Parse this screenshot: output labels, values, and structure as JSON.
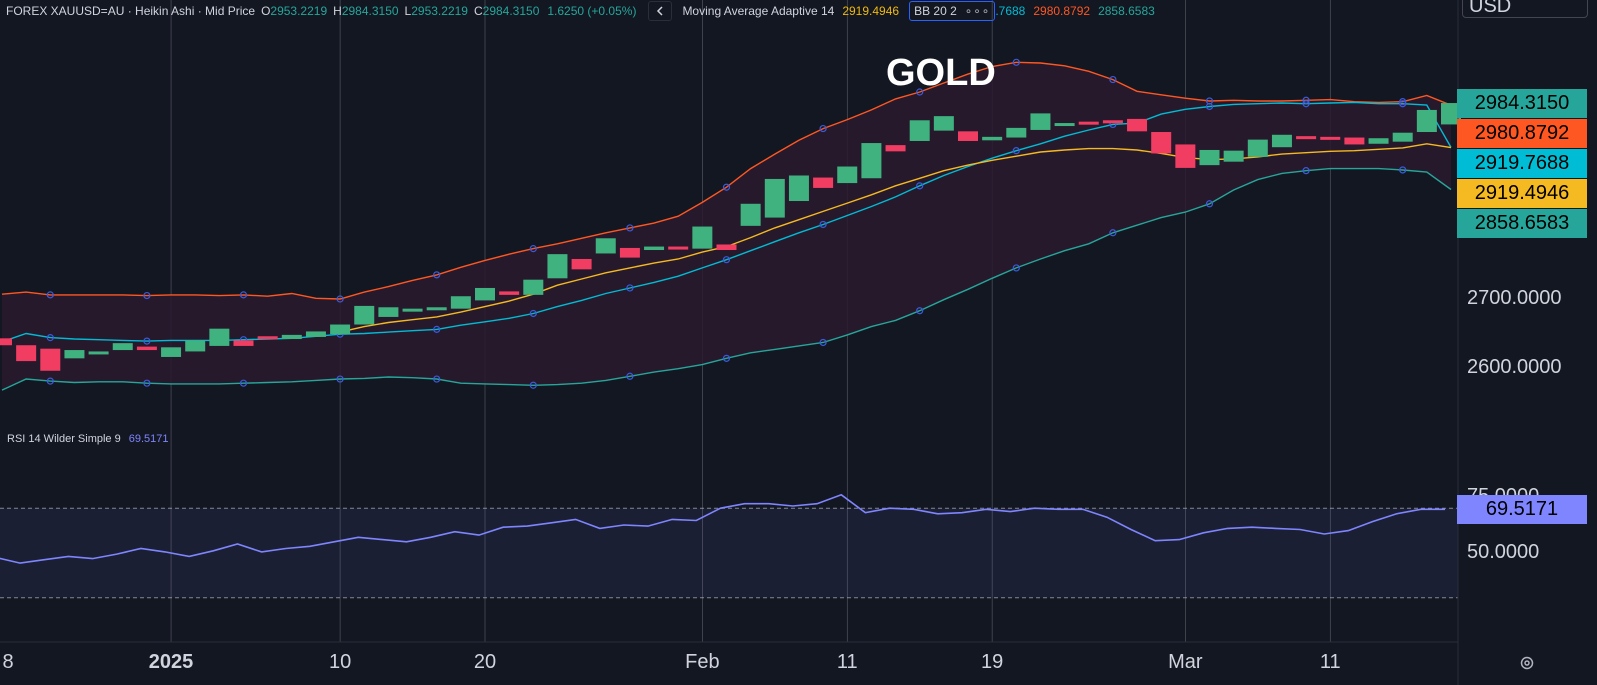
{
  "header": {
    "symbol": "FOREX XAUUSD=AU · Heikin Ashi · Mid Price",
    "o_key": "O",
    "o_val": "2953.2219",
    "h_key": "H",
    "h_val": "2984.3150",
    "l_key": "L",
    "l_val": "2953.2219",
    "c_key": "C",
    "c_val": "2984.3150",
    "change": "1.6250 (+0.05%)",
    "collapse_icon": "chevron-left-icon",
    "ma_label": "Moving Average Adaptive 14",
    "ma_value": "2919.4946",
    "bb_label": "BB 20 2",
    "bb_more": "∘∘∘",
    "bb_mid": ".7688",
    "bb_upper": "2980.8792",
    "bb_lower": "2858.6583"
  },
  "currency": "USD",
  "chart_title": "GOLD",
  "rsi_header": {
    "label": "RSI 14 Wilder Simple 9",
    "value": "69.5171"
  },
  "price_axis": [
    {
      "label": "2700.0000",
      "value": 2700
    },
    {
      "label": "2600.0000",
      "value": 2600
    }
  ],
  "rsi_axis": [
    {
      "label": "75.0000",
      "value": 75
    },
    {
      "label": "50.0000",
      "value": 50
    }
  ],
  "price_tags": [
    {
      "label": "2984.3150",
      "value": 2984.315,
      "color": "#26a69a"
    },
    {
      "label": "2980.8792",
      "value": 2980.8792,
      "color": "#ff5722"
    },
    {
      "label": "2919.7688",
      "value": 2919.7688,
      "color": "#00bcd4"
    },
    {
      "label": "2919.4946",
      "value": 2919.4946,
      "color": "#f5b921"
    },
    {
      "label": "2858.6583",
      "value": 2858.6583,
      "color": "#26a69a"
    }
  ],
  "rsi_tag": {
    "label": "69.5171",
    "value": 69.5171,
    "color": "#7e85ff"
  },
  "x_axis": [
    {
      "label": "8",
      "bar": 0,
      "bold": false
    },
    {
      "label": "2025",
      "bar": 7,
      "bold": true
    },
    {
      "label": "10",
      "bar": 14,
      "bold": false
    },
    {
      "label": "20",
      "bar": 20,
      "bold": false
    },
    {
      "label": "Feb",
      "bar": 29,
      "bold": false
    },
    {
      "label": "11",
      "bar": 35,
      "bold": false
    },
    {
      "label": "19",
      "bar": 41,
      "bold": false
    },
    {
      "label": "Mar",
      "bar": 49,
      "bold": false
    },
    {
      "label": "11",
      "bar": 55,
      "bold": false
    }
  ],
  "settings_icon": "settings-icon",
  "colors": {
    "bg": "#131722",
    "up": "#3fb27f",
    "down": "#f23d63",
    "upper": "#ff5722",
    "basis": "#00bcd4",
    "lower": "#26a69a",
    "ma": "#f5b921",
    "rsi": "#7e85ff",
    "band_fill": "#2a1a2e",
    "grid": "#9598a1"
  },
  "chart_data": [
    {
      "type": "candlestick",
      "subtype": "heikin-ashi",
      "title": "GOLD",
      "symbol": "XAUUSD",
      "ylim": [
        2550,
        3040
      ],
      "x_ticks": [
        "8",
        "2025",
        "10",
        "20",
        "Feb",
        "11",
        "19",
        "Mar",
        "11"
      ],
      "candles": [
        [
          2643,
          2633
        ],
        [
          2633,
          2610
        ],
        [
          2628,
          2596
        ],
        [
          2614,
          2626
        ],
        [
          2622,
          2624
        ],
        [
          2626,
          2636
        ],
        [
          2631,
          2626
        ],
        [
          2616,
          2630
        ],
        [
          2624,
          2640
        ],
        [
          2632,
          2657
        ],
        [
          2640,
          2632
        ],
        [
          2646,
          2644
        ],
        [
          2642,
          2648
        ],
        [
          2645,
          2653
        ],
        [
          2649,
          2663
        ],
        [
          2663,
          2690
        ],
        [
          2674,
          2688
        ],
        [
          2684,
          2686
        ],
        [
          2685,
          2688
        ],
        [
          2686,
          2704
        ],
        [
          2698,
          2716
        ],
        [
          2711,
          2706
        ],
        [
          2706,
          2728
        ],
        [
          2730,
          2765
        ],
        [
          2758,
          2743
        ],
        [
          2766,
          2788
        ],
        [
          2774,
          2760
        ],
        [
          2771,
          2776
        ],
        [
          2776,
          2773
        ],
        [
          2773,
          2805
        ],
        [
          2779,
          2771
        ],
        [
          2806,
          2838
        ],
        [
          2818,
          2874
        ],
        [
          2842,
          2879
        ],
        [
          2876,
          2861
        ],
        [
          2868,
          2892
        ],
        [
          2875,
          2926
        ],
        [
          2923,
          2914
        ],
        [
          2929,
          2959
        ],
        [
          2944,
          2965
        ],
        [
          2943,
          2929
        ],
        [
          2930,
          2935
        ],
        [
          2934,
          2948
        ],
        [
          2945,
          2969
        ],
        [
          2951,
          2955
        ],
        [
          2957,
          2955
        ],
        [
          2959,
          2955
        ],
        [
          2961,
          2943
        ],
        [
          2942,
          2911
        ],
        [
          2924,
          2890
        ],
        [
          2894,
          2916
        ],
        [
          2899,
          2915
        ],
        [
          2906,
          2931
        ],
        [
          2920,
          2938
        ],
        [
          2936,
          2934
        ],
        [
          2935,
          2931
        ],
        [
          2934,
          2924
        ],
        [
          2925,
          2933
        ],
        [
          2928,
          2941
        ],
        [
          2942,
          2974
        ],
        [
          2953,
          2984
        ]
      ],
      "series": [
        {
          "name": "BB 20 2 upper",
          "values": [
            2707,
            2710,
            2706,
            2706,
            2706,
            2706,
            2705,
            2706,
            2706,
            2705,
            2706,
            2704,
            2708,
            2701,
            2700,
            2710,
            2718,
            2727,
            2735,
            2746,
            2756,
            2765,
            2773,
            2780,
            2788,
            2796,
            2803,
            2810,
            2820,
            2840,
            2862,
            2889,
            2910,
            2930,
            2947,
            2960,
            2974,
            2990,
            3000,
            3013,
            3026,
            3037,
            3043,
            3042,
            3038,
            3030,
            3018,
            3001,
            2996,
            2991,
            2987,
            2988,
            2987,
            2987,
            2988,
            2989,
            2986,
            2985,
            2986,
            2995,
            2980.88
          ]
        },
        {
          "name": "BB 20 2 basis",
          "values": [
            2638,
            2650,
            2644,
            2642,
            2641,
            2640,
            2639,
            2640,
            2640,
            2640,
            2641,
            2642,
            2643,
            2646,
            2649,
            2650,
            2652,
            2654,
            2656,
            2662,
            2667,
            2672,
            2679,
            2689,
            2698,
            2708,
            2716,
            2724,
            2733,
            2745,
            2757,
            2770,
            2783,
            2796,
            2808,
            2821,
            2834,
            2848,
            2864,
            2879,
            2892,
            2904,
            2915,
            2925,
            2936,
            2945,
            2953,
            2955,
            2968,
            2975,
            2979,
            2982,
            2983,
            2984,
            2983,
            2984,
            2985,
            2983,
            2983,
            2981,
            2919.77
          ]
        },
        {
          "name": "BB 20 2 lower",
          "values": [
            2568,
            2584,
            2581,
            2579,
            2580,
            2580,
            2578,
            2577,
            2577,
            2577,
            2578,
            2579,
            2580,
            2582,
            2584,
            2585,
            2587,
            2586,
            2584,
            2578,
            2577,
            2576,
            2575,
            2576,
            2578,
            2582,
            2588,
            2594,
            2599,
            2605,
            2614,
            2622,
            2627,
            2632,
            2637,
            2648,
            2660,
            2669,
            2683,
            2699,
            2714,
            2730,
            2745,
            2758,
            2770,
            2780,
            2796,
            2807,
            2818,
            2826,
            2838,
            2858,
            2873,
            2882,
            2886,
            2889,
            2889,
            2889,
            2887,
            2884,
            2858.66
          ]
        },
        {
          "name": "Moving Average Adaptive 14",
          "values": [
            null,
            null,
            null,
            null,
            null,
            null,
            null,
            null,
            null,
            null,
            null,
            null,
            null,
            null,
            2652,
            2660,
            2666,
            2670,
            2674,
            2681,
            2689,
            2697,
            2707,
            2720,
            2729,
            2738,
            2745,
            2752,
            2758,
            2768,
            2776,
            2789,
            2803,
            2815,
            2827,
            2839,
            2851,
            2864,
            2875,
            2886,
            2894,
            2901,
            2907,
            2913,
            2916,
            2918,
            2918,
            2916,
            2911,
            2905,
            2902,
            2903,
            2906,
            2910,
            2912,
            2914,
            2915,
            2917,
            2919,
            2925,
            2919.49
          ]
        }
      ]
    },
    {
      "type": "line",
      "title": "RSI 14 Wilder Simple 9",
      "ylim": [
        30,
        85
      ],
      "guides": [
        70,
        30
      ],
      "x_ticks": [
        "8",
        "2025",
        "10",
        "20",
        "Feb",
        "11",
        "19",
        "Mar",
        "11"
      ],
      "series": [
        {
          "name": "RSI 14",
          "values": [
            48,
            45.5,
            47,
            48.5,
            47.5,
            49.5,
            52,
            50.5,
            48.5,
            51,
            54,
            50.5,
            52,
            53,
            55,
            57,
            56,
            55,
            57,
            59.5,
            58,
            61.5,
            62,
            63.5,
            65,
            61,
            62.5,
            62,
            65,
            64.5,
            70,
            72,
            72,
            71,
            72,
            76,
            68,
            70,
            69.5,
            67.5,
            68,
            69.5,
            68.5,
            70,
            69.5,
            69.5,
            66,
            60.5,
            55.5,
            56,
            59,
            61,
            61.5,
            61,
            60.5,
            58.5,
            60,
            64,
            67.5,
            69.5,
            69.5171
          ]
        }
      ]
    }
  ]
}
